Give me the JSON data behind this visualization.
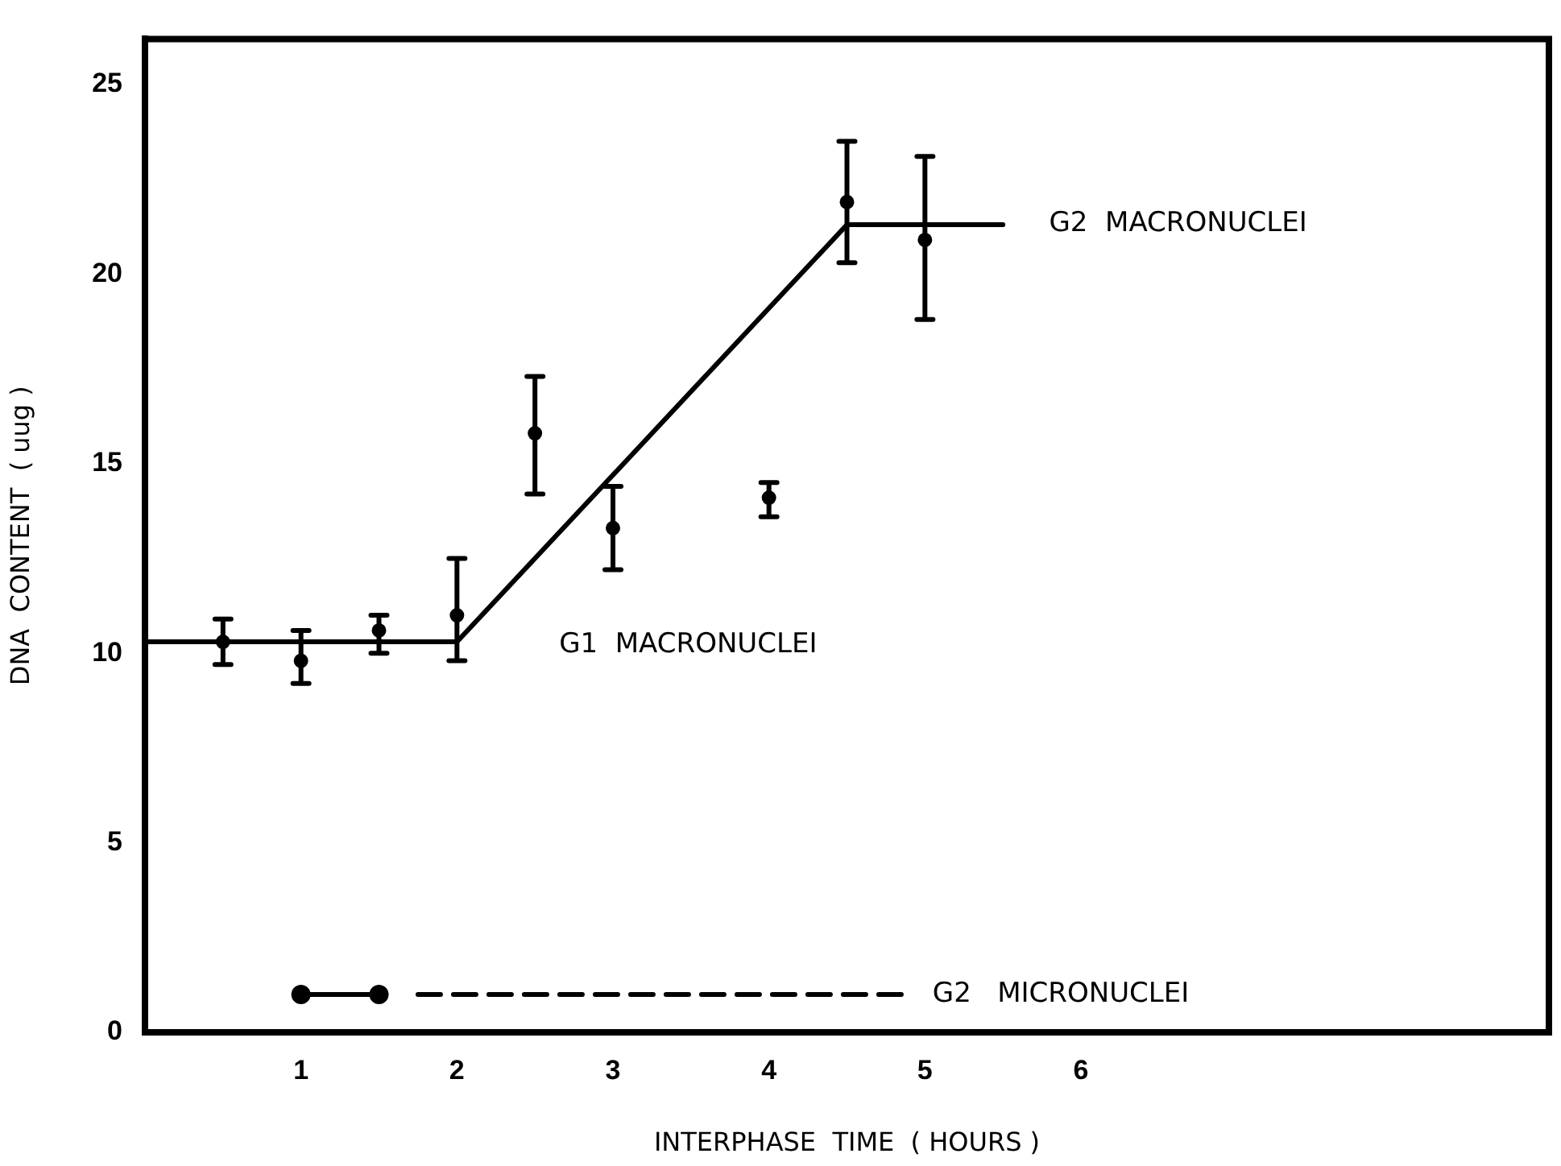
{
  "chart_data": {
    "type": "scatter",
    "xlabel": "INTERPHASE  TIME  ( HOURS )",
    "ylabel": "DNA  CONTENT  ( uug )",
    "xlim": [
      0,
      9
    ],
    "xticks": [
      1,
      2,
      3,
      4,
      5,
      6
    ],
    "ylim": [
      0,
      26.2
    ],
    "yticks": [
      0,
      5,
      10,
      15,
      20,
      25
    ],
    "grid": false,
    "legend": false,
    "series": [
      {
        "type": "scatter",
        "color": "#000000",
        "marker": "circle",
        "x": [
          0.5,
          1,
          1.5,
          2,
          2.5,
          3,
          4,
          4.5,
          5
        ],
        "values": [
          10.3,
          9.8,
          10.6,
          11.0,
          15.8,
          13.3,
          14.1,
          21.9,
          20.9
        ],
        "errors": [
          [
            9.7,
            10.9
          ],
          [
            9.2,
            10.6
          ],
          [
            10.0,
            11.0
          ],
          [
            9.8,
            12.5
          ],
          [
            14.2,
            17.3
          ],
          [
            12.2,
            14.4
          ],
          [
            13.6,
            14.5
          ],
          [
            20.3,
            23.5
          ],
          [
            18.8,
            23.1
          ]
        ]
      },
      {
        "type": "line",
        "color": "#000000",
        "marker": "none",
        "line_style": "solid",
        "x": [
          0,
          2,
          4.5,
          5.5
        ],
        "values": [
          10.3,
          10.3,
          21.3,
          21.3
        ]
      },
      {
        "type": "line",
        "color": "#000000",
        "marker": "circle",
        "line_style": "solid",
        "x": [
          1,
          1.5
        ],
        "values": [
          1.0,
          1.0
        ]
      },
      {
        "type": "line",
        "color": "#000000",
        "marker": "none",
        "line_style": "dashed",
        "x": [
          1.75,
          4.9
        ],
        "values": [
          1.0,
          1.0
        ]
      }
    ],
    "annotations": [
      "G2  MACRONUCLEI",
      "G1  MACRONUCLEI",
      "G2   MICRONUCLEI"
    ]
  }
}
